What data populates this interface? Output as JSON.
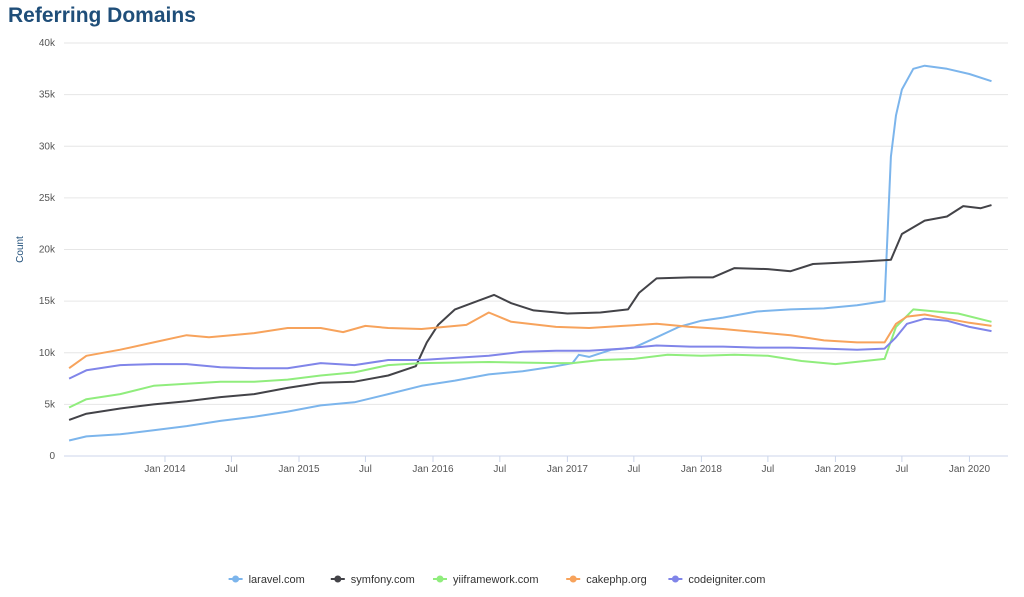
{
  "page": {
    "title": "Referring Domains"
  },
  "chart_data": {
    "type": "line",
    "title": "Referring Domains",
    "ylabel": "Count",
    "xlabel": "",
    "ylim": [
      0,
      40000
    ],
    "xlim": [
      "2013-04-01",
      "2020-04-15"
    ],
    "y_ticks": [
      {
        "value": 0,
        "label": "0"
      },
      {
        "value": 5000,
        "label": "5k"
      },
      {
        "value": 10000,
        "label": "10k"
      },
      {
        "value": 15000,
        "label": "15k"
      },
      {
        "value": 20000,
        "label": "20k"
      },
      {
        "value": 25000,
        "label": "25k"
      },
      {
        "value": 30000,
        "label": "30k"
      },
      {
        "value": 35000,
        "label": "35k"
      },
      {
        "value": 40000,
        "label": "40k"
      }
    ],
    "x_ticks": [
      {
        "date": "2014-01-01",
        "label": "Jan 2014"
      },
      {
        "date": "2014-07-01",
        "label": "Jul"
      },
      {
        "date": "2015-01-01",
        "label": "Jan 2015"
      },
      {
        "date": "2015-07-01",
        "label": "Jul"
      },
      {
        "date": "2016-01-01",
        "label": "Jan 2016"
      },
      {
        "date": "2016-07-01",
        "label": "Jul"
      },
      {
        "date": "2017-01-01",
        "label": "Jan 2017"
      },
      {
        "date": "2017-07-01",
        "label": "Jul"
      },
      {
        "date": "2018-01-01",
        "label": "Jan 2018"
      },
      {
        "date": "2018-07-01",
        "label": "Jul"
      },
      {
        "date": "2019-01-01",
        "label": "Jan 2019"
      },
      {
        "date": "2019-07-01",
        "label": "Jul"
      },
      {
        "date": "2020-01-01",
        "label": "Jan 2020"
      }
    ],
    "grid": "horizontal",
    "legend_position": "bottom",
    "series": [
      {
        "name": "laravel.com",
        "color": "#7cb5ec",
        "points": [
          [
            "2013-04-15",
            1500
          ],
          [
            "2013-06-01",
            1900
          ],
          [
            "2013-09-01",
            2100
          ],
          [
            "2013-12-01",
            2500
          ],
          [
            "2014-03-01",
            2900
          ],
          [
            "2014-06-01",
            3400
          ],
          [
            "2014-09-01",
            3800
          ],
          [
            "2014-12-01",
            4300
          ],
          [
            "2015-03-01",
            4900
          ],
          [
            "2015-06-01",
            5200
          ],
          [
            "2015-09-01",
            6000
          ],
          [
            "2015-12-01",
            6800
          ],
          [
            "2016-03-01",
            7300
          ],
          [
            "2016-06-01",
            7900
          ],
          [
            "2016-09-01",
            8200
          ],
          [
            "2016-12-01",
            8700
          ],
          [
            "2017-01-15",
            9000
          ],
          [
            "2017-02-01",
            9800
          ],
          [
            "2017-03-01",
            9600
          ],
          [
            "2017-05-01",
            10300
          ],
          [
            "2017-07-01",
            10500
          ],
          [
            "2017-09-01",
            11500
          ],
          [
            "2017-11-01",
            12500
          ],
          [
            "2018-01-01",
            13100
          ],
          [
            "2018-03-01",
            13400
          ],
          [
            "2018-06-01",
            14000
          ],
          [
            "2018-09-01",
            14200
          ],
          [
            "2018-12-01",
            14300
          ],
          [
            "2019-03-01",
            14600
          ],
          [
            "2019-05-15",
            15000
          ],
          [
            "2019-06-01",
            29000
          ],
          [
            "2019-06-15",
            33000
          ],
          [
            "2019-07-01",
            35500
          ],
          [
            "2019-08-01",
            37500
          ],
          [
            "2019-09-01",
            37800
          ],
          [
            "2019-11-01",
            37500
          ],
          [
            "2020-01-01",
            37000
          ],
          [
            "2020-03-01",
            36300
          ]
        ]
      },
      {
        "name": "symfony.com",
        "color": "#434348",
        "points": [
          [
            "2013-04-15",
            3500
          ],
          [
            "2013-06-01",
            4100
          ],
          [
            "2013-09-01",
            4600
          ],
          [
            "2013-12-01",
            5000
          ],
          [
            "2014-03-01",
            5300
          ],
          [
            "2014-06-01",
            5700
          ],
          [
            "2014-09-01",
            6000
          ],
          [
            "2014-12-01",
            6600
          ],
          [
            "2015-03-01",
            7100
          ],
          [
            "2015-06-01",
            7200
          ],
          [
            "2015-09-01",
            7800
          ],
          [
            "2015-11-15",
            8700
          ],
          [
            "2015-12-15",
            11000
          ],
          [
            "2016-01-15",
            12700
          ],
          [
            "2016-03-01",
            14200
          ],
          [
            "2016-05-01",
            15000
          ],
          [
            "2016-06-15",
            15600
          ],
          [
            "2016-08-01",
            14800
          ],
          [
            "2016-10-01",
            14100
          ],
          [
            "2017-01-01",
            13800
          ],
          [
            "2017-04-01",
            13900
          ],
          [
            "2017-06-15",
            14200
          ],
          [
            "2017-07-15",
            15800
          ],
          [
            "2017-09-01",
            17200
          ],
          [
            "2017-12-01",
            17300
          ],
          [
            "2018-02-01",
            17300
          ],
          [
            "2018-04-01",
            18200
          ],
          [
            "2018-07-01",
            18100
          ],
          [
            "2018-09-01",
            17900
          ],
          [
            "2018-11-01",
            18600
          ],
          [
            "2019-03-01",
            18800
          ],
          [
            "2019-06-01",
            19000
          ],
          [
            "2019-07-01",
            21500
          ],
          [
            "2019-09-01",
            22800
          ],
          [
            "2019-11-01",
            23200
          ],
          [
            "2019-12-15",
            24200
          ],
          [
            "2020-02-01",
            24000
          ],
          [
            "2020-03-01",
            24300
          ]
        ]
      },
      {
        "name": "yiiframework.com",
        "color": "#90ed7d",
        "points": [
          [
            "2013-04-15",
            4700
          ],
          [
            "2013-06-01",
            5500
          ],
          [
            "2013-09-01",
            6000
          ],
          [
            "2013-12-01",
            6800
          ],
          [
            "2014-03-01",
            7000
          ],
          [
            "2014-06-01",
            7200
          ],
          [
            "2014-09-01",
            7200
          ],
          [
            "2014-12-01",
            7400
          ],
          [
            "2015-03-01",
            7800
          ],
          [
            "2015-06-01",
            8100
          ],
          [
            "2015-09-01",
            8800
          ],
          [
            "2015-12-01",
            9000
          ],
          [
            "2016-06-01",
            9100
          ],
          [
            "2016-12-01",
            9000
          ],
          [
            "2017-01-15",
            9000
          ],
          [
            "2017-04-01",
            9300
          ],
          [
            "2017-07-01",
            9400
          ],
          [
            "2017-10-01",
            9800
          ],
          [
            "2018-01-01",
            9700
          ],
          [
            "2018-04-01",
            9800
          ],
          [
            "2018-07-01",
            9700
          ],
          [
            "2018-10-01",
            9200
          ],
          [
            "2019-01-01",
            8900
          ],
          [
            "2019-05-15",
            9400
          ],
          [
            "2019-06-15",
            12500
          ],
          [
            "2019-08-01",
            14200
          ],
          [
            "2019-10-01",
            14000
          ],
          [
            "2019-12-01",
            13800
          ],
          [
            "2020-03-01",
            13000
          ]
        ]
      },
      {
        "name": "cakephp.org",
        "color": "#f7a35c",
        "points": [
          [
            "2013-04-15",
            8500
          ],
          [
            "2013-06-01",
            9700
          ],
          [
            "2013-09-01",
            10300
          ],
          [
            "2013-12-01",
            11000
          ],
          [
            "2014-03-01",
            11700
          ],
          [
            "2014-05-01",
            11500
          ],
          [
            "2014-07-01",
            11700
          ],
          [
            "2014-09-01",
            11900
          ],
          [
            "2014-12-01",
            12400
          ],
          [
            "2015-03-01",
            12400
          ],
          [
            "2015-05-01",
            12000
          ],
          [
            "2015-07-01",
            12600
          ],
          [
            "2015-09-01",
            12400
          ],
          [
            "2015-12-01",
            12300
          ],
          [
            "2016-04-01",
            12700
          ],
          [
            "2016-06-01",
            13900
          ],
          [
            "2016-08-01",
            13000
          ],
          [
            "2016-12-01",
            12500
          ],
          [
            "2017-03-01",
            12400
          ],
          [
            "2017-06-01",
            12600
          ],
          [
            "2017-09-01",
            12800
          ],
          [
            "2017-12-01",
            12500
          ],
          [
            "2018-03-01",
            12300
          ],
          [
            "2018-06-01",
            12000
          ],
          [
            "2018-09-01",
            11700
          ],
          [
            "2018-12-01",
            11200
          ],
          [
            "2019-03-01",
            11000
          ],
          [
            "2019-05-15",
            11000
          ],
          [
            "2019-06-15",
            12800
          ],
          [
            "2019-07-15",
            13500
          ],
          [
            "2019-09-01",
            13700
          ],
          [
            "2019-11-01",
            13300
          ],
          [
            "2020-01-01",
            12900
          ],
          [
            "2020-03-01",
            12600
          ]
        ]
      },
      {
        "name": "codeigniter.com",
        "color": "#8085e9",
        "points": [
          [
            "2013-04-15",
            7500
          ],
          [
            "2013-06-01",
            8300
          ],
          [
            "2013-09-01",
            8800
          ],
          [
            "2013-12-01",
            8900
          ],
          [
            "2014-03-01",
            8900
          ],
          [
            "2014-06-01",
            8600
          ],
          [
            "2014-09-01",
            8500
          ],
          [
            "2014-12-01",
            8500
          ],
          [
            "2015-03-01",
            9000
          ],
          [
            "2015-06-01",
            8800
          ],
          [
            "2015-09-01",
            9300
          ],
          [
            "2015-12-01",
            9300
          ],
          [
            "2016-03-01",
            9500
          ],
          [
            "2016-06-01",
            9700
          ],
          [
            "2016-09-01",
            10100
          ],
          [
            "2016-12-01",
            10200
          ],
          [
            "2017-03-01",
            10200
          ],
          [
            "2017-06-01",
            10400
          ],
          [
            "2017-09-01",
            10700
          ],
          [
            "2017-12-01",
            10600
          ],
          [
            "2018-03-01",
            10600
          ],
          [
            "2018-06-01",
            10500
          ],
          [
            "2018-09-01",
            10500
          ],
          [
            "2018-12-01",
            10400
          ],
          [
            "2019-03-01",
            10300
          ],
          [
            "2019-05-15",
            10400
          ],
          [
            "2019-06-15",
            11500
          ],
          [
            "2019-07-15",
            12800
          ],
          [
            "2019-09-01",
            13300
          ],
          [
            "2019-11-01",
            13100
          ],
          [
            "2020-01-01",
            12500
          ],
          [
            "2020-03-01",
            12100
          ]
        ]
      }
    ]
  }
}
